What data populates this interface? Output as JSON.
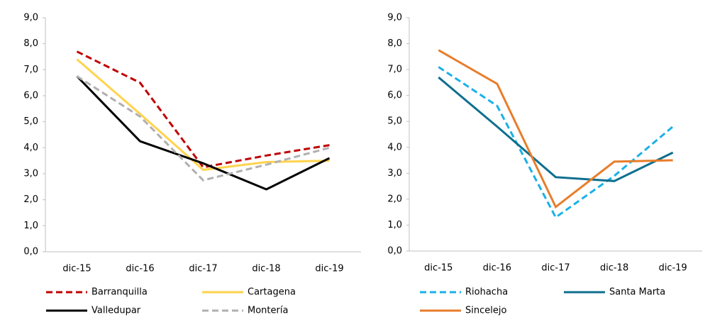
{
  "chart_data": [
    {
      "type": "line",
      "categories": [
        "dic-15",
        "dic-16",
        "dic-17",
        "dic-18",
        "dic-19"
      ],
      "ylim": [
        0,
        9
      ],
      "yticks": [
        {
          "value": 0,
          "label": "0,0"
        },
        {
          "value": 1,
          "label": "1,0"
        },
        {
          "value": 2,
          "label": "2,0"
        },
        {
          "value": 3,
          "label": "3,0"
        },
        {
          "value": 4,
          "label": "4,0"
        },
        {
          "value": 5,
          "label": "5,0"
        },
        {
          "value": 6,
          "label": "6,0"
        },
        {
          "value": 7,
          "label": "7,0"
        },
        {
          "value": 8,
          "label": "8,0"
        },
        {
          "value": 9,
          "label": "9,0"
        }
      ],
      "legend": "bottom",
      "series": [
        {
          "name": "Barranquilla",
          "color": "#c00000",
          "dashed": true,
          "values": [
            7.7,
            6.5,
            3.25,
            3.7,
            4.1
          ]
        },
        {
          "name": "Cartagena",
          "color": "#ffd34d",
          "dashed": false,
          "values": [
            7.4,
            5.3,
            3.15,
            3.45,
            3.5
          ]
        },
        {
          "name": "Valledupar",
          "color": "#000000",
          "dashed": false,
          "values": [
            6.75,
            4.25,
            3.4,
            2.4,
            3.6
          ]
        },
        {
          "name": "Montería",
          "color": "#b0b0b0",
          "dashed": true,
          "values": [
            6.75,
            5.2,
            2.75,
            3.35,
            4.0
          ]
        }
      ]
    },
    {
      "type": "line",
      "categories": [
        "dic-15",
        "dic-16",
        "dic-17",
        "dic-18",
        "dic-19"
      ],
      "ylim": [
        0,
        9
      ],
      "yticks": [
        {
          "value": 0,
          "label": "0,0"
        },
        {
          "value": 1,
          "label": "1,0"
        },
        {
          "value": 2,
          "label": "2,0"
        },
        {
          "value": 3,
          "label": "3,0"
        },
        {
          "value": 4,
          "label": "4,0"
        },
        {
          "value": 5,
          "label": "5,0"
        },
        {
          "value": 6,
          "label": "6,0"
        },
        {
          "value": 7,
          "label": "7,0"
        },
        {
          "value": 8,
          "label": "8,0"
        },
        {
          "value": 9,
          "label": "9,0"
        }
      ],
      "legend": "bottom",
      "series": [
        {
          "name": "Riohacha",
          "color": "#1ab0e8",
          "dashed": true,
          "values": [
            7.1,
            5.6,
            1.3,
            2.9,
            4.8
          ]
        },
        {
          "name": "Santa Marta",
          "color": "#0e6f8f",
          "dashed": false,
          "values": [
            6.7,
            4.8,
            2.85,
            2.7,
            3.8
          ]
        },
        {
          "name": "Sincelejo",
          "color": "#e87d2b",
          "dashed": false,
          "values": [
            7.75,
            6.45,
            1.7,
            3.45,
            3.5
          ]
        }
      ]
    }
  ]
}
